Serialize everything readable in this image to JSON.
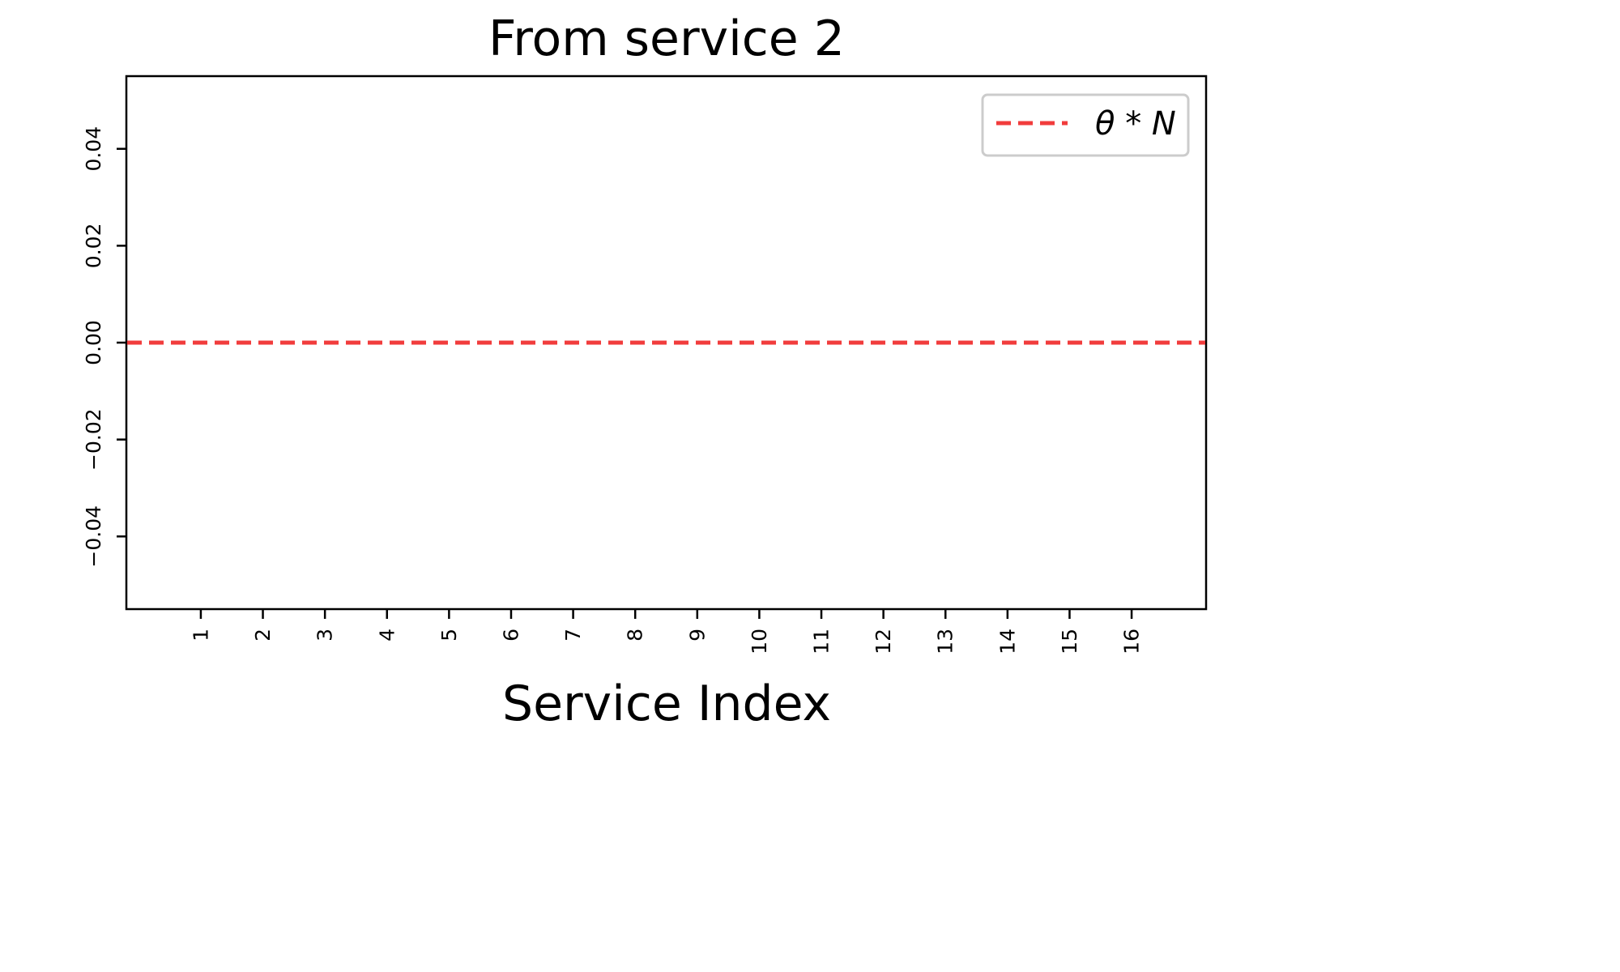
{
  "chart_data": {
    "type": "line",
    "title": "From service 2",
    "xlabel": "Service Index",
    "ylabel": "",
    "categories": [
      "1",
      "2",
      "3",
      "4",
      "5",
      "6",
      "7",
      "8",
      "9",
      "10",
      "11",
      "12",
      "13",
      "14",
      "15",
      "16"
    ],
    "x_range": [
      -0.2,
      17.2
    ],
    "ylim": [
      -0.055,
      0.055
    ],
    "y_ticks": [
      -0.04,
      -0.02,
      0.0,
      0.02,
      0.04
    ],
    "y_tick_labels": [
      "−0.04",
      "−0.02",
      "0.00",
      "0.02",
      "0.04"
    ],
    "x_tick_rotation": "vertical",
    "y_tick_rotation": "vertical",
    "grid": false,
    "legend_position": "top-right",
    "series": [
      {
        "name": "θ * N",
        "style": "dashed",
        "color": "#f03232",
        "kind": "horizontal-line",
        "y": 0.0
      }
    ]
  }
}
